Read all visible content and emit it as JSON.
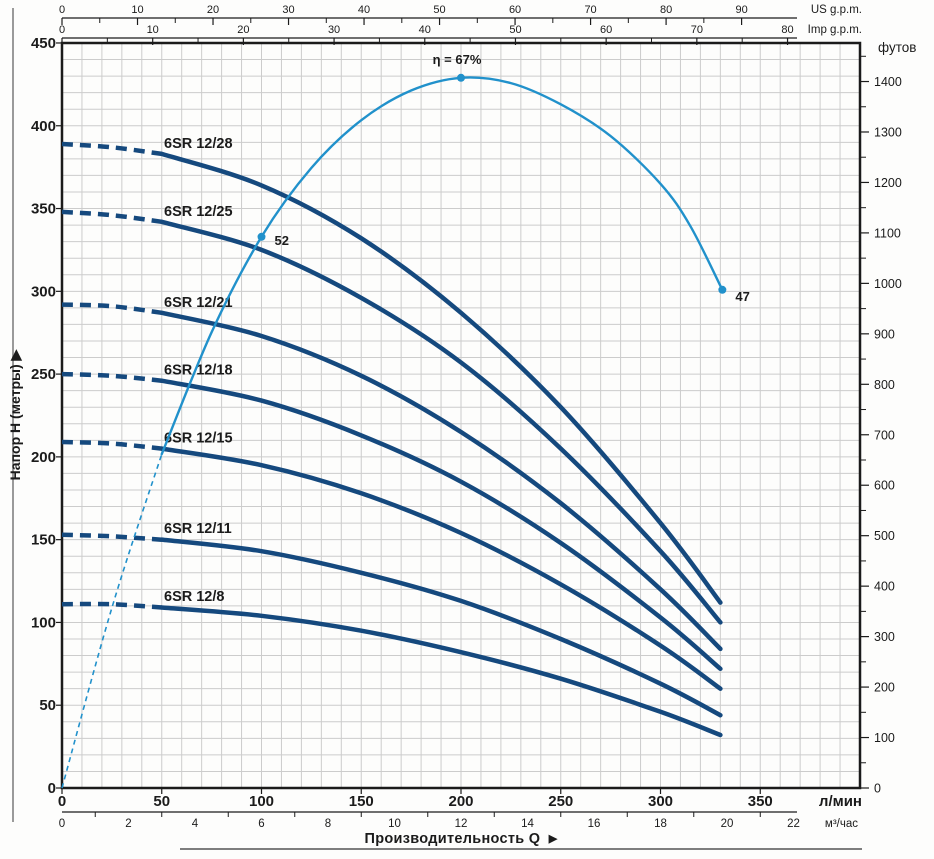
{
  "colors": {
    "pump_curve": "#15497e",
    "efficiency_curve": "#2191cb",
    "grid": "#cccccc",
    "axis": "#1b1b1b",
    "text": "#1b1b1b"
  },
  "chart_data": {
    "type": "line",
    "title": "",
    "x_axis": {
      "title": "Производительность Q",
      "title_arrow": "▶",
      "lmin": {
        "unit_label": "л/мин",
        "tick_values": [
          0,
          50,
          100,
          150,
          200,
          250,
          300,
          350
        ],
        "grid_step": 10,
        "max": 400
      },
      "m3h": {
        "unit_label": "м³/час",
        "label_values": [
          0,
          2,
          4,
          6,
          8,
          10,
          12,
          14,
          16,
          18,
          20,
          22
        ],
        "minor_tick_values": [
          1,
          3,
          5,
          7,
          9,
          11,
          13,
          15,
          17,
          19,
          21
        ],
        "lmin_per_unit": 16.667
      },
      "us_gpm": {
        "unit_label": "US g.p.m.",
        "tick_values": [
          0,
          10,
          20,
          30,
          40,
          50,
          60,
          70,
          80,
          90
        ],
        "minor_tick_values": [
          5,
          15,
          25,
          35,
          45,
          55,
          65,
          75,
          85
        ],
        "lmin_per_unit": 3.785
      },
      "imp_gpm": {
        "unit_label": "Imp g.p.m.",
        "tick_values": [
          0,
          10,
          20,
          30,
          40,
          50,
          60,
          70,
          80
        ],
        "minor_tick_values": [
          5,
          15,
          25,
          35,
          45,
          55,
          65,
          75
        ],
        "lmin_per_unit": 4.546
      }
    },
    "y_axis": {
      "title": "Напор H (метры)",
      "title_arrow": "▶",
      "meters": {
        "tick_values": [
          0,
          50,
          100,
          150,
          200,
          250,
          300,
          350,
          400,
          450
        ],
        "grid_step": 10,
        "min": 0,
        "max": 450
      },
      "feet": {
        "unit_label": "футов",
        "label_values": [
          0,
          100,
          200,
          300,
          400,
          500,
          600,
          700,
          800,
          900,
          1000,
          1100,
          1200,
          1300,
          1400
        ],
        "minor_step": 50,
        "minor_max": 1450,
        "meters_per_unit": 0.3048
      }
    },
    "q_lmin": [
      0,
      25,
      50,
      100,
      150,
      200,
      250,
      300,
      330
    ],
    "dashed_until_q": 50,
    "series": [
      {
        "name": "6SR 12/28",
        "stages": 28,
        "head_m": [
          389,
          387,
          383,
          364,
          332,
          287,
          230,
          160,
          112
        ]
      },
      {
        "name": "6SR 12/25",
        "stages": 25,
        "head_m": [
          348,
          346,
          342,
          325,
          296,
          257,
          205,
          143,
          100
        ]
      },
      {
        "name": "6SR 12/21",
        "stages": 21,
        "head_m": [
          292,
          291,
          287,
          273,
          249,
          215,
          172,
          120,
          84
        ]
      },
      {
        "name": "6SR 12/18",
        "stages": 18,
        "head_m": [
          250,
          249,
          246,
          234,
          213,
          185,
          148,
          103,
          72
        ]
      },
      {
        "name": "6SR 12/15",
        "stages": 15,
        "head_m": [
          209,
          208,
          205,
          195,
          178,
          154,
          123,
          86,
          60
        ]
      },
      {
        "name": "6SR 12/11",
        "stages": 11,
        "head_m": [
          153,
          152,
          150,
          143,
          130,
          113,
          90,
          63,
          44
        ]
      },
      {
        "name": "6SR 12/8",
        "stages": 8,
        "head_m": [
          111,
          111,
          109,
          104,
          95,
          82,
          66,
          46,
          32
        ]
      }
    ],
    "efficiency": {
      "name": "efficiency",
      "q_lmin": [
        0,
        25,
        50,
        75,
        100,
        125,
        150,
        175,
        200,
        225,
        250,
        275,
        300,
        315,
        331
      ],
      "eta_pct": [
        0,
        17,
        31.5,
        43,
        52,
        58.5,
        63,
        65.8,
        67,
        66.5,
        64.5,
        61.5,
        57,
        53,
        47
      ],
      "dashed_until_q": 50,
      "markers": [
        {
          "q": 100,
          "pct": 52,
          "label": "52"
        },
        {
          "q": 200,
          "pct": 67,
          "label": "η = 67%"
        },
        {
          "q": 331,
          "pct": 47,
          "label": "47"
        }
      ]
    }
  }
}
